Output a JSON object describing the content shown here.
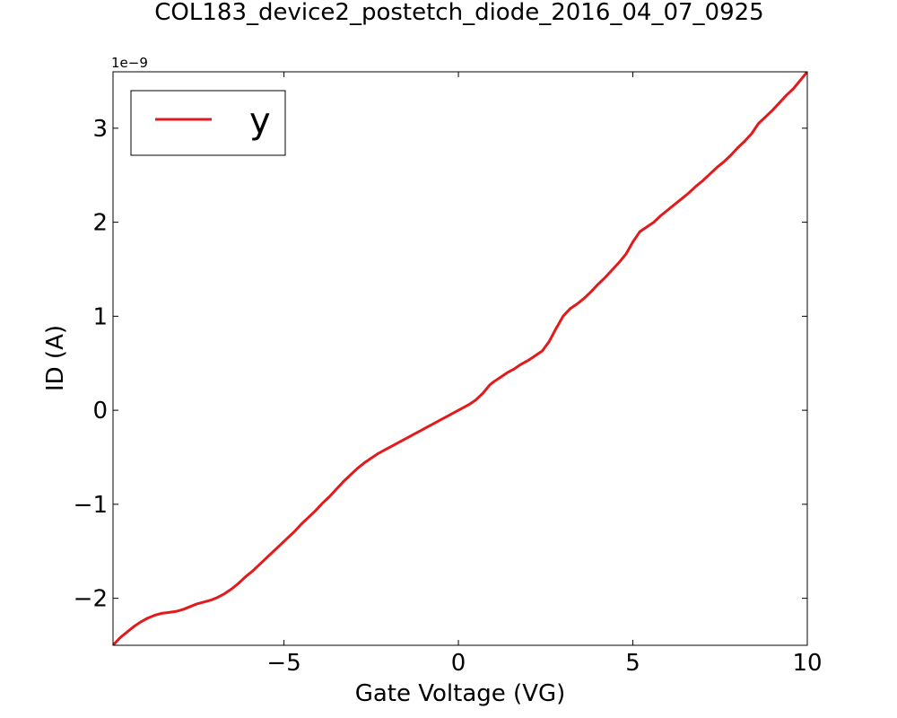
{
  "chart_data": {
    "type": "line",
    "title": "COL183_device2_postetch_diode_2016_04_07_0925",
    "xlabel": "Gate Voltage (VG)",
    "ylabel": "ID (A)",
    "y_offset_label": "1e−9",
    "xlim": [
      -9.9,
      10
    ],
    "ylim": [
      -2.5,
      3.6
    ],
    "y_scale_factor": 1e-09,
    "x_ticks": [
      -5,
      0,
      5,
      10
    ],
    "x_tick_labels": [
      "−5",
      "0",
      "5",
      "10"
    ],
    "y_ticks": [
      -2,
      -1,
      0,
      1,
      2,
      3
    ],
    "y_tick_labels": [
      "−2",
      "−1",
      "0",
      "1",
      "2",
      "3"
    ],
    "grid": false,
    "legend_position": "top-left",
    "series": [
      {
        "name": "y",
        "color": "#e31a1c",
        "x": [
          -9.9,
          -9.7,
          -9.5,
          -9.3,
          -9.1,
          -8.9,
          -8.7,
          -8.5,
          -8.3,
          -8.1,
          -7.9,
          -7.7,
          -7.5,
          -7.3,
          -7.1,
          -6.9,
          -6.7,
          -6.5,
          -6.3,
          -6.1,
          -5.9,
          -5.7,
          -5.5,
          -5.3,
          -5.1,
          -4.9,
          -4.7,
          -4.5,
          -4.3,
          -4.1,
          -3.9,
          -3.7,
          -3.5,
          -3.3,
          -3.1,
          -2.9,
          -2.7,
          -2.5,
          -2.3,
          -2.1,
          -1.9,
          -1.7,
          -1.5,
          -1.3,
          -1.1,
          -0.9,
          -0.7,
          -0.5,
          -0.3,
          -0.1,
          0.1,
          0.3,
          0.5,
          0.7,
          0.9,
          1.0,
          1.2,
          1.4,
          1.6,
          1.8,
          2.0,
          2.2,
          2.4,
          2.6,
          2.8,
          3.0,
          3.2,
          3.4,
          3.6,
          3.8,
          4.0,
          4.2,
          4.4,
          4.6,
          4.8,
          5.0,
          5.2,
          5.4,
          5.6,
          5.8,
          6.0,
          6.2,
          6.4,
          6.6,
          6.8,
          7.0,
          7.2,
          7.4,
          7.6,
          7.8,
          8.0,
          8.2,
          8.4,
          8.6,
          8.8,
          9.0,
          9.2,
          9.4,
          9.6,
          9.8,
          10.0
        ],
        "y": [
          -2.5,
          -2.42,
          -2.36,
          -2.3,
          -2.25,
          -2.21,
          -2.18,
          -2.16,
          -2.15,
          -2.14,
          -2.12,
          -2.09,
          -2.06,
          -2.04,
          -2.02,
          -1.99,
          -1.95,
          -1.9,
          -1.84,
          -1.77,
          -1.71,
          -1.64,
          -1.57,
          -1.5,
          -1.43,
          -1.36,
          -1.29,
          -1.21,
          -1.14,
          -1.07,
          -0.99,
          -0.92,
          -0.84,
          -0.76,
          -0.69,
          -0.62,
          -0.56,
          -0.51,
          -0.46,
          -0.42,
          -0.38,
          -0.34,
          -0.3,
          -0.26,
          -0.22,
          -0.18,
          -0.14,
          -0.1,
          -0.06,
          -0.02,
          0.02,
          0.06,
          0.11,
          0.18,
          0.27,
          0.3,
          0.35,
          0.4,
          0.44,
          0.49,
          0.53,
          0.58,
          0.63,
          0.73,
          0.87,
          1.0,
          1.08,
          1.13,
          1.19,
          1.26,
          1.34,
          1.41,
          1.49,
          1.57,
          1.66,
          1.79,
          1.9,
          1.95,
          2.0,
          2.07,
          2.13,
          2.19,
          2.25,
          2.31,
          2.38,
          2.44,
          2.51,
          2.58,
          2.64,
          2.71,
          2.79,
          2.86,
          2.94,
          3.05,
          3.12,
          3.19,
          3.27,
          3.35,
          3.42,
          3.51,
          3.6
        ]
      }
    ]
  }
}
